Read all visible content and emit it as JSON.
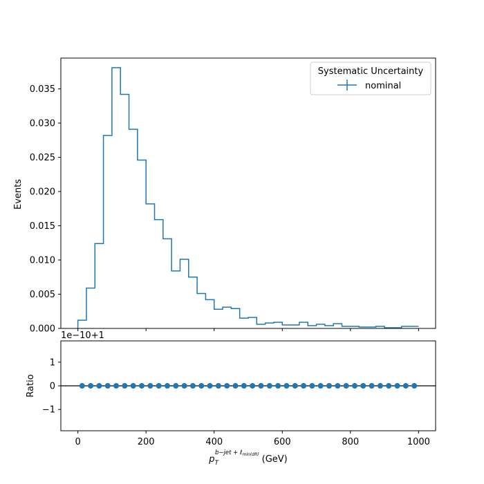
{
  "chart_data": [
    {
      "type": "step",
      "panel": "main",
      "ylabel": "Events",
      "xlim": [
        -50,
        1050
      ],
      "ylim": [
        0,
        0.0395
      ],
      "yticks": [
        0.0,
        0.005,
        0.01,
        0.015,
        0.02,
        0.025,
        0.03,
        0.035
      ],
      "ytick_labels": [
        "0.000",
        "0.005",
        "0.010",
        "0.015",
        "0.020",
        "0.025",
        "0.030",
        "0.035"
      ],
      "bin_width": 25,
      "bin_edges_start": 0,
      "color": "#1f77b4",
      "legend": {
        "title": "Systematic Uncertainty",
        "entries": [
          "nominal"
        ],
        "placement": "upper-right"
      },
      "series": [
        {
          "name": "nominal",
          "values": [
            0.0012,
            0.0059,
            0.0124,
            0.0282,
            0.0381,
            0.0342,
            0.0291,
            0.0246,
            0.0182,
            0.0159,
            0.0131,
            0.0084,
            0.0101,
            0.0075,
            0.0051,
            0.0042,
            0.0028,
            0.0031,
            0.0029,
            0.0015,
            0.0016,
            0.0006,
            0.0008,
            0.0009,
            0.0005,
            0.0005,
            0.0009,
            0.0004,
            0.0006,
            0.0004,
            0.0007,
            0.0003,
            0.0003,
            0.0002,
            0.0002,
            0.0003,
            0.0001,
            0.0001,
            0.0003,
            0.0003
          ]
        }
      ]
    },
    {
      "type": "scatter",
      "panel": "ratio",
      "ylabel": "Ratio",
      "offset_text": "1e−10+1",
      "xlim": [
        -50,
        1050
      ],
      "ylim": [
        -1.9,
        1.9
      ],
      "yticks": [
        -1,
        0,
        1
      ],
      "ytick_labels": [
        "−1",
        "0",
        "1"
      ],
      "xticks": [
        0,
        200,
        400,
        600,
        800,
        1000
      ],
      "xtick_labels": [
        "0",
        "200",
        "400",
        "600",
        "800",
        "1000"
      ],
      "xlabel_main": "p",
      "xlabel_sub": "T",
      "xlabel_sup": "b−jet + ℓ",
      "xlabel_sup_sub": "min(dR)",
      "xlabel_unit": " (GeV)",
      "reference_line": 0,
      "color": "#1f77b4",
      "x": [
        12.5,
        37.5,
        62.5,
        87.5,
        112.5,
        137.5,
        162.5,
        187.5,
        212.5,
        237.5,
        262.5,
        287.5,
        312.5,
        337.5,
        362.5,
        387.5,
        412.5,
        437.5,
        462.5,
        487.5,
        512.5,
        537.5,
        562.5,
        587.5,
        612.5,
        637.5,
        662.5,
        687.5,
        712.5,
        737.5,
        762.5,
        787.5,
        812.5,
        837.5,
        862.5,
        887.5,
        912.5,
        937.5,
        962.5,
        987.5
      ],
      "values": [
        0,
        0,
        0,
        0,
        0,
        0,
        0,
        0,
        0,
        0,
        0,
        0,
        0,
        0,
        0,
        0,
        0,
        0,
        0,
        0,
        0,
        0,
        0,
        0,
        0,
        0,
        0,
        0,
        0,
        0,
        0,
        0,
        0,
        0,
        0,
        0,
        0,
        0,
        0,
        0
      ]
    }
  ]
}
